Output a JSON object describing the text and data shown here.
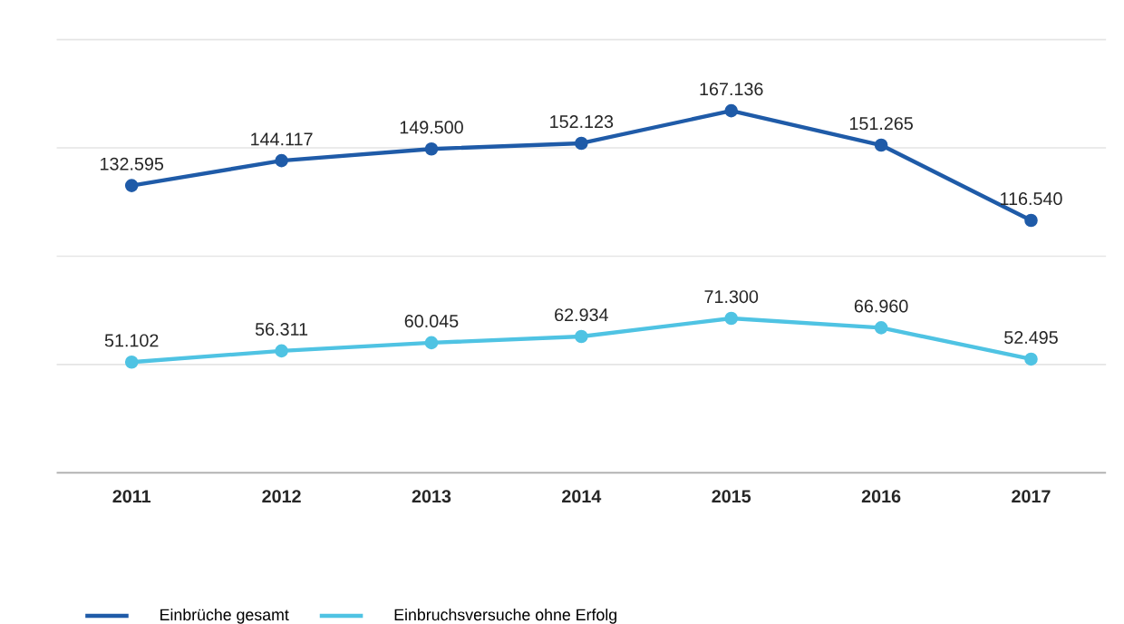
{
  "chart_data": {
    "type": "line",
    "categories": [
      "2011",
      "2012",
      "2013",
      "2014",
      "2015",
      "2016",
      "2017"
    ],
    "series": [
      {
        "name": "Einbrüche gesamt",
        "color": "#1f5ba8",
        "values": [
          132595,
          144117,
          149500,
          152123,
          167136,
          151265,
          116540
        ],
        "value_labels": [
          "132.595",
          "144.117",
          "149.500",
          "152.123",
          "167.136",
          "151.265",
          "116.540"
        ]
      },
      {
        "name": "Einbruchsversuche ohne Erfolg",
        "color": "#4fc3e3",
        "values": [
          51102,
          56311,
          60045,
          62934,
          71300,
          66960,
          52495
        ],
        "value_labels": [
          "51.102",
          "56.311",
          "60.045",
          "62.934",
          "71.300",
          "66.960",
          "52.495"
        ]
      }
    ],
    "ylim": [
      0,
      200000
    ],
    "yticks": [
      {
        "value": 50000,
        "label": null
      },
      {
        "value": 100000,
        "label": null
      },
      {
        "value": 150000,
        "label": null
      },
      {
        "value": 200000,
        "label": null
      }
    ],
    "tick_labels": "x",
    "grid": "y",
    "legend": "bottom",
    "marker": "circle",
    "line_style": "solid"
  }
}
